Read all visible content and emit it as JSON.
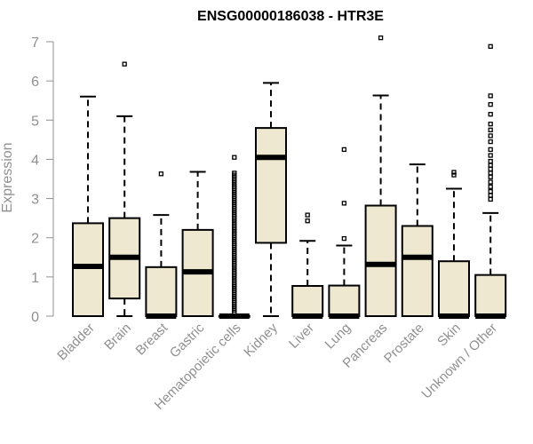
{
  "chart_data": {
    "type": "boxplot",
    "title": "ENSG00000186038 - HTR3E",
    "xlabel": "",
    "ylabel": "Expression",
    "ylim": [
      0,
      7
    ],
    "yticks": [
      "0",
      "1",
      "2",
      "3",
      "4",
      "5",
      "6",
      "7"
    ],
    "box_color": "#EEE8D0",
    "categories": [
      "Bladder",
      "Brain",
      "Breast",
      "Gastric",
      "Hematopoietic cells",
      "Kidney",
      "Liver",
      "Lung",
      "Pancreas",
      "Prostate",
      "Skin",
      "Unknown / Other"
    ],
    "boxes": [
      {
        "min": 0,
        "q1": 0,
        "median": 1.27,
        "q3": 2.37,
        "max": 5.6,
        "outliers": []
      },
      {
        "min": 0,
        "q1": 0.45,
        "median": 1.5,
        "q3": 2.5,
        "max": 5.1,
        "outliers": [
          6.43
        ]
      },
      {
        "min": 0,
        "q1": 0,
        "median": 0,
        "q3": 1.25,
        "max": 2.58,
        "outliers": [
          3.63
        ]
      },
      {
        "min": 0,
        "q1": 0,
        "median": 1.13,
        "q3": 2.2,
        "max": 3.68,
        "outliers": []
      },
      {
        "min": 0,
        "q1": 0,
        "median": 0,
        "q3": 0,
        "max": 0,
        "outliers": [
          0.1,
          0.15,
          0.2,
          0.25,
          0.3,
          0.35,
          0.4,
          0.45,
          0.5,
          0.55,
          0.6,
          0.65,
          0.7,
          0.75,
          0.8,
          0.85,
          0.9,
          0.95,
          1.0,
          1.05,
          1.1,
          1.15,
          1.2,
          1.25,
          1.3,
          1.35,
          1.4,
          1.45,
          1.5,
          1.55,
          1.6,
          1.65,
          1.7,
          1.75,
          1.8,
          1.85,
          1.9,
          1.95,
          2.0,
          2.05,
          2.1,
          2.15,
          2.2,
          2.25,
          2.3,
          2.35,
          2.4,
          2.45,
          2.5,
          2.55,
          2.6,
          2.65,
          2.7,
          2.75,
          2.8,
          2.85,
          2.9,
          2.95,
          3.0,
          3.05,
          3.1,
          3.15,
          3.2,
          3.25,
          3.3,
          3.35,
          3.4,
          3.45,
          3.5,
          3.55,
          3.6,
          3.65,
          4.05
        ]
      },
      {
        "min": 0,
        "q1": 1.87,
        "median": 4.05,
        "q3": 4.8,
        "max": 5.95,
        "outliers": []
      },
      {
        "min": 0,
        "q1": 0,
        "median": 0,
        "q3": 0.77,
        "max": 1.92,
        "outliers": [
          2.43,
          2.58
        ]
      },
      {
        "min": 0,
        "q1": 0,
        "median": 0,
        "q3": 0.78,
        "max": 1.8,
        "outliers": [
          1.98,
          2.88,
          4.25
        ]
      },
      {
        "min": 0,
        "q1": 0,
        "median": 1.32,
        "q3": 2.82,
        "max": 5.63,
        "outliers": [
          7.1
        ]
      },
      {
        "min": 0,
        "q1": 0,
        "median": 1.5,
        "q3": 2.3,
        "max": 3.87,
        "outliers": []
      },
      {
        "min": 0,
        "q1": 0,
        "median": 0,
        "q3": 1.4,
        "max": 3.25,
        "outliers": [
          3.6,
          3.67
        ]
      },
      {
        "min": 0,
        "q1": 0,
        "median": 0,
        "q3": 1.05,
        "max": 2.63,
        "outliers": [
          2.98,
          3.08,
          3.18,
          3.3,
          3.42,
          3.55,
          3.65,
          3.75,
          3.85,
          3.95,
          4.1,
          4.25,
          4.45,
          4.6,
          4.75,
          4.9,
          5.15,
          5.4,
          5.62,
          6.88
        ]
      }
    ]
  }
}
